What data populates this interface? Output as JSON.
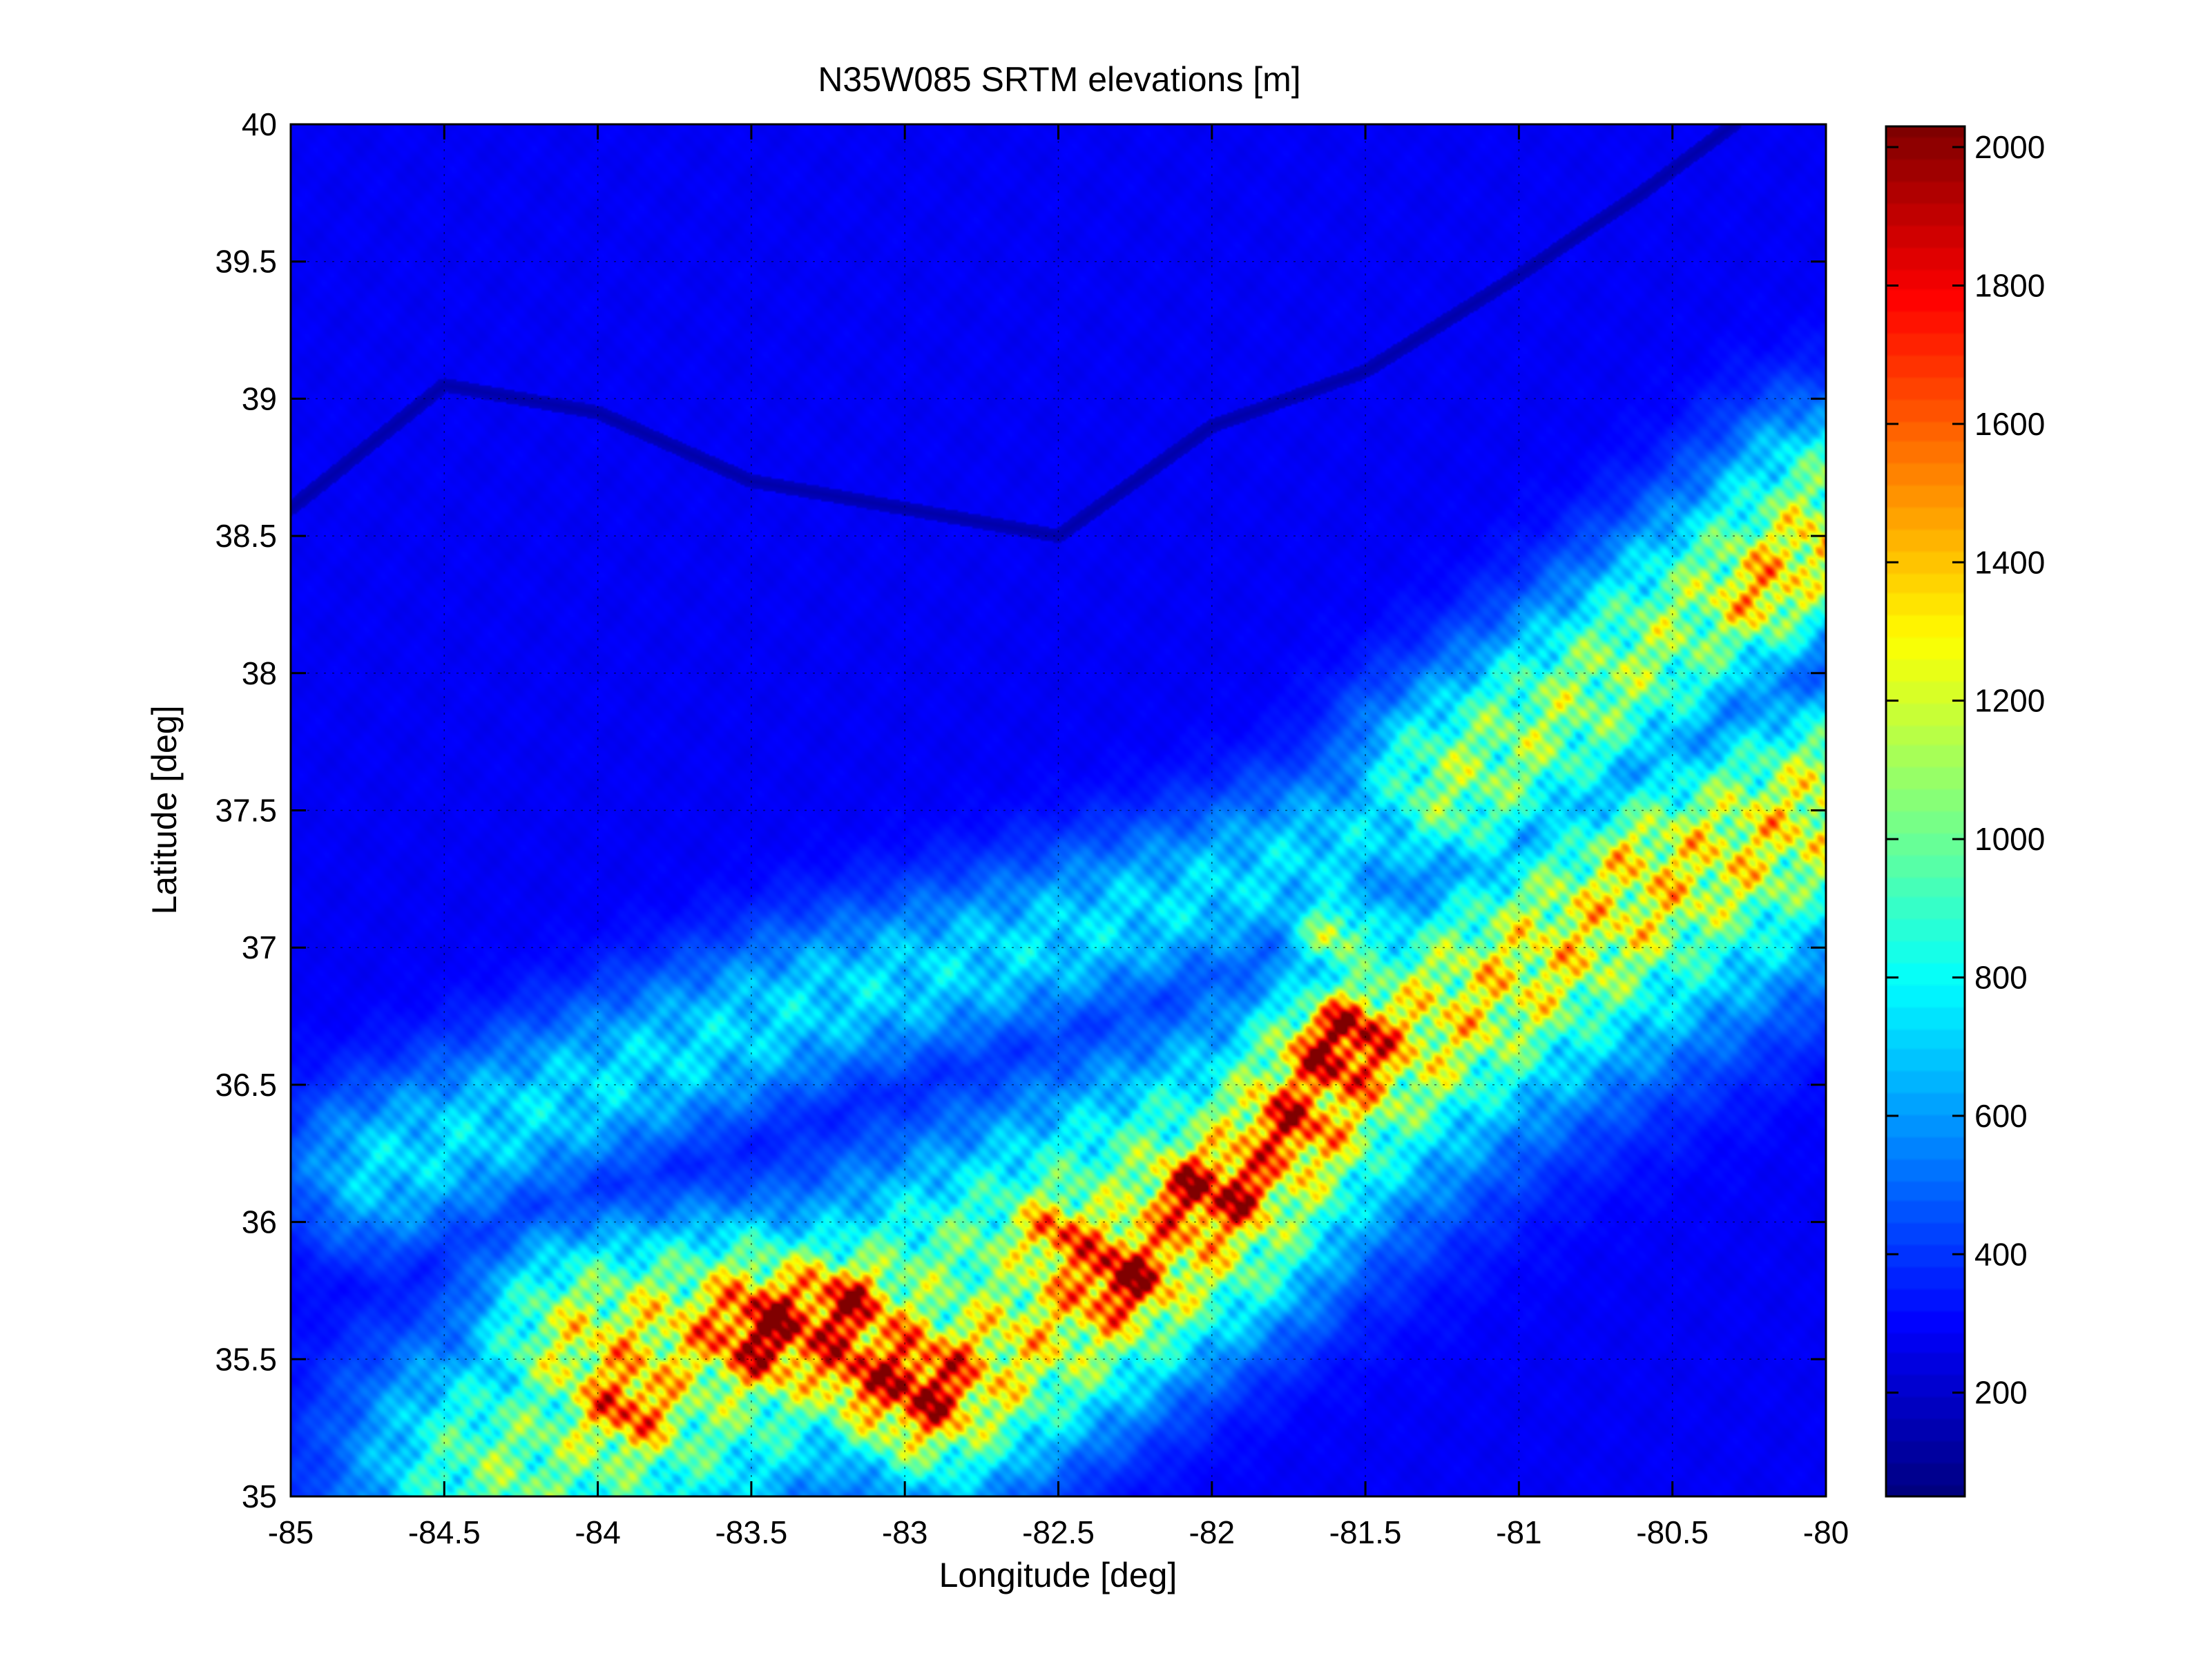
{
  "chart_data": {
    "type": "heatmap",
    "title": "N35W085 SRTM elevations [m]",
    "xlabel": "Longitude [deg]",
    "ylabel": "Latitude [deg]",
    "xlim": [
      -85,
      -80
    ],
    "ylim": [
      35,
      40
    ],
    "xticks": [
      -85,
      -84.5,
      -84,
      -83.5,
      -83,
      -82.5,
      -82,
      -81.5,
      -81,
      -80.5,
      -80
    ],
    "yticks": [
      35,
      35.5,
      36,
      36.5,
      37,
      37.5,
      38,
      38.5,
      39,
      39.5,
      40
    ],
    "grid": true,
    "colormap": "jet",
    "colorbar": {
      "range": [
        50,
        2030
      ],
      "ticks": [
        200,
        400,
        600,
        800,
        1000,
        1200,
        1400,
        1600,
        1800,
        2000
      ],
      "placement": "right"
    },
    "background_elevation_m": 280,
    "ridges": [
      {
        "points": [
          [
            -84.0,
            35.55
          ],
          [
            -83.5,
            35.62
          ],
          [
            -83.2,
            35.6
          ],
          [
            -82.9,
            35.4
          ],
          [
            -82.5,
            35.65
          ],
          [
            -82.0,
            36.0
          ],
          [
            -81.6,
            36.5
          ],
          [
            -81.0,
            36.9
          ],
          [
            -80.5,
            37.25
          ],
          [
            -80.0,
            37.5
          ]
        ],
        "elevation_m": 1250,
        "width_deg": 0.28
      },
      {
        "points": [
          [
            -84.3,
            35.1
          ],
          [
            -83.8,
            35.3
          ],
          [
            -83.3,
            35.55
          ],
          [
            -82.8,
            35.8
          ],
          [
            -82.3,
            36.05
          ],
          [
            -81.8,
            36.3
          ],
          [
            -81.3,
            36.7
          ],
          [
            -80.8,
            37.0
          ],
          [
            -80.3,
            37.3
          ]
        ],
        "elevation_m": 1000,
        "width_deg": 0.35
      },
      {
        "points": [
          [
            -84.7,
            36.2
          ],
          [
            -84.0,
            36.5
          ],
          [
            -83.3,
            36.8
          ],
          [
            -82.6,
            37.0
          ],
          [
            -82.0,
            37.2
          ],
          [
            -81.3,
            37.5
          ],
          [
            -80.7,
            37.9
          ],
          [
            -80.2,
            38.3
          ]
        ],
        "elevation_m": 720,
        "width_deg": 0.22
      },
      {
        "points": [
          [
            -81.2,
            37.6
          ],
          [
            -80.8,
            37.9
          ],
          [
            -80.5,
            38.15
          ],
          [
            -80.2,
            38.4
          ],
          [
            -80.0,
            38.6
          ]
        ],
        "elevation_m": 1050,
        "width_deg": 0.25
      }
    ],
    "peaks": [
      {
        "lon": -83.45,
        "lat": 35.6,
        "elevation_m": 1980,
        "radius_deg": 0.12
      },
      {
        "lon": -83.2,
        "lat": 35.68,
        "elevation_m": 1850,
        "radius_deg": 0.1
      },
      {
        "lon": -82.95,
        "lat": 35.4,
        "elevation_m": 1900,
        "radius_deg": 0.12
      },
      {
        "lon": -83.15,
        "lat": 35.45,
        "elevation_m": 1750,
        "radius_deg": 0.08
      },
      {
        "lon": -82.3,
        "lat": 35.8,
        "elevation_m": 1950,
        "radius_deg": 0.1
      },
      {
        "lon": -82.05,
        "lat": 36.1,
        "elevation_m": 1880,
        "radius_deg": 0.1
      },
      {
        "lon": -81.6,
        "lat": 36.6,
        "elevation_m": 1800,
        "radius_deg": 0.1
      },
      {
        "lon": -81.75,
        "lat": 36.35,
        "elevation_m": 1750,
        "radius_deg": 0.1
      },
      {
        "lon": -82.5,
        "lat": 35.95,
        "elevation_m": 1650,
        "radius_deg": 0.08
      },
      {
        "lon": -83.9,
        "lat": 35.33,
        "elevation_m": 1700,
        "radius_deg": 0.1
      },
      {
        "lon": -81.55,
        "lat": 36.68,
        "elevation_m": 1950,
        "radius_deg": 0.08
      },
      {
        "lon": -81.92,
        "lat": 36.12,
        "elevation_m": 1850,
        "radius_deg": 0.07
      },
      {
        "lon": -80.2,
        "lat": 38.3,
        "elevation_m": 1420,
        "radius_deg": 0.1
      },
      {
        "lon": -80.05,
        "lat": 38.45,
        "elevation_m": 1380,
        "radius_deg": 0.08
      },
      {
        "lon": -80.6,
        "lat": 37.3,
        "elevation_m": 1280,
        "radius_deg": 0.08
      },
      {
        "lon": -81.6,
        "lat": 37.05,
        "elevation_m": 1150,
        "radius_deg": 0.08
      }
    ],
    "lowlands": [
      {
        "lon": -84.6,
        "lat": 38.9,
        "elevation_m": 180,
        "radius_deg": 0.8
      },
      {
        "lon": -83.0,
        "lat": 38.9,
        "elevation_m": 190,
        "radius_deg": 0.7
      },
      {
        "lon": -81.2,
        "lat": 35.4,
        "elevation_m": 200,
        "radius_deg": 0.9
      },
      {
        "lon": -84.3,
        "lat": 37.8,
        "elevation_m": 230,
        "radius_deg": 0.5
      }
    ],
    "river": {
      "points": [
        [
          -85.0,
          38.6
        ],
        [
          -84.5,
          39.05
        ],
        [
          -84.0,
          38.95
        ],
        [
          -83.5,
          38.7
        ],
        [
          -83.0,
          38.6
        ],
        [
          -82.5,
          38.5
        ],
        [
          -82.0,
          38.9
        ],
        [
          -81.5,
          39.1
        ],
        [
          -81.0,
          39.45
        ],
        [
          -80.6,
          39.75
        ],
        [
          -80.3,
          40.0
        ]
      ],
      "elevation_m": 130,
      "width_deg": 0.025
    }
  }
}
